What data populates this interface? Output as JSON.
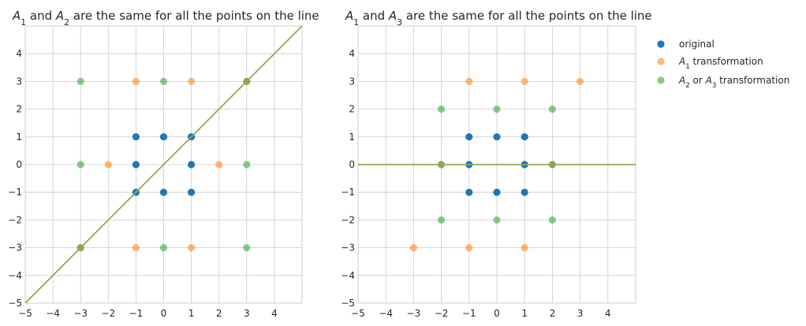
{
  "colors": {
    "original": "#1f77b4",
    "a1": "#ff7f0e",
    "a2a3": "#2ca02c",
    "line": "#8fa85a",
    "grid": "#cccccc",
    "axis_frame": "#cccccc"
  },
  "legend": {
    "placement": "outside-right-top",
    "entries": [
      {
        "key": "original",
        "text": "original"
      },
      {
        "key": "a1",
        "text": "A1 transformation"
      },
      {
        "key": "a2a3",
        "text": "A2 or A3 transformation"
      }
    ]
  },
  "chart_data": [
    {
      "type": "scatter",
      "title": "A1 and A2 are the same for all the points on the line",
      "xlim": [
        -5,
        5
      ],
      "ylim": [
        -5,
        5
      ],
      "xticks": [
        -5,
        -4,
        -3,
        -2,
        -1,
        0,
        1,
        2,
        3,
        4
      ],
      "yticks": [
        -5,
        -4,
        -3,
        -2,
        -1,
        0,
        1,
        2,
        3,
        4
      ],
      "grid": true,
      "line": {
        "points": [
          [
            -5,
            -5
          ],
          [
            5,
            5
          ]
        ]
      },
      "series": [
        {
          "key": "original",
          "points": [
            [
              -1,
              1
            ],
            [
              0,
              1
            ],
            [
              1,
              1
            ],
            [
              -1,
              0
            ],
            [
              1,
              0
            ],
            [
              -1,
              -1
            ],
            [
              0,
              -1
            ],
            [
              1,
              -1
            ]
          ]
        },
        {
          "key": "a1",
          "points": [
            [
              -1,
              3
            ],
            [
              1,
              3
            ],
            [
              -2,
              0
            ],
            [
              2,
              0
            ],
            [
              -1,
              -3
            ],
            [
              1,
              -3
            ],
            [
              -3,
              -3
            ],
            [
              3,
              3
            ]
          ]
        },
        {
          "key": "a2a3",
          "points": [
            [
              -3,
              3
            ],
            [
              0,
              3
            ],
            [
              3,
              3
            ],
            [
              -3,
              0
            ],
            [
              3,
              0
            ],
            [
              -3,
              -3
            ],
            [
              0,
              -3
            ],
            [
              3,
              -3
            ]
          ]
        }
      ]
    },
    {
      "type": "scatter",
      "title": "A1 and A3 are the same for all the points on the line",
      "xlim": [
        -5,
        5
      ],
      "ylim": [
        -5,
        5
      ],
      "xticks": [
        -5,
        -4,
        -3,
        -2,
        -1,
        0,
        1,
        2,
        3,
        4
      ],
      "yticks": [
        -5,
        -4,
        -3,
        -2,
        -1,
        0,
        1,
        2,
        3,
        4
      ],
      "grid": true,
      "line": {
        "points": [
          [
            -5,
            0
          ],
          [
            5,
            0
          ]
        ]
      },
      "series": [
        {
          "key": "original",
          "points": [
            [
              -1,
              1
            ],
            [
              0,
              1
            ],
            [
              1,
              1
            ],
            [
              -1,
              0
            ],
            [
              1,
              0
            ],
            [
              -1,
              -1
            ],
            [
              0,
              -1
            ],
            [
              1,
              -1
            ]
          ]
        },
        {
          "key": "a1",
          "points": [
            [
              -1,
              3
            ],
            [
              1,
              3
            ],
            [
              3,
              3
            ],
            [
              -2,
              0
            ],
            [
              2,
              0
            ],
            [
              -3,
              -3
            ],
            [
              -1,
              -3
            ],
            [
              1,
              -3
            ]
          ]
        },
        {
          "key": "a2a3",
          "points": [
            [
              -2,
              2
            ],
            [
              0,
              2
            ],
            [
              2,
              2
            ],
            [
              -2,
              0
            ],
            [
              2,
              0
            ],
            [
              -2,
              -2
            ],
            [
              0,
              -2
            ],
            [
              2,
              -2
            ]
          ]
        }
      ]
    }
  ]
}
